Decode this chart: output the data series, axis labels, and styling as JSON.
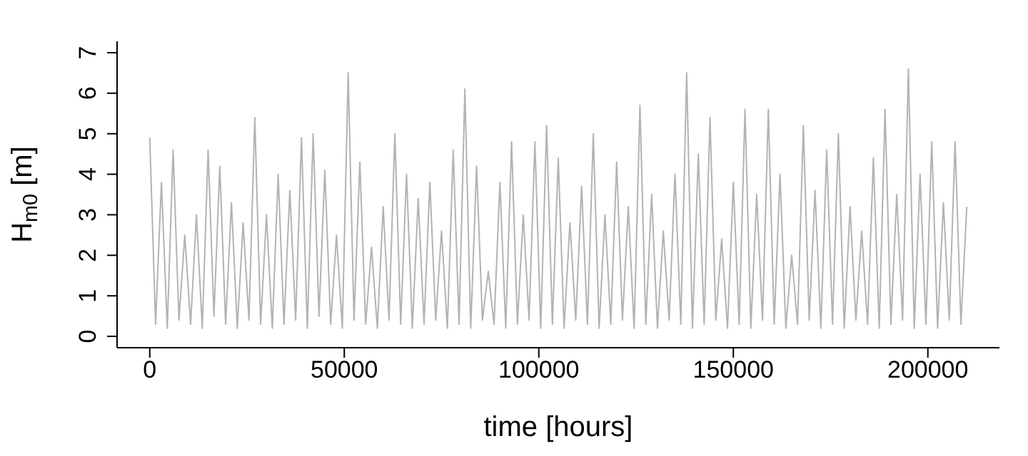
{
  "chart_data": {
    "type": "line",
    "xlabel": "time [hours]",
    "ylabel": "H$_{m0}$ [m]",
    "x": [
      0,
      1500,
      3000,
      4500,
      6000,
      7500,
      9000,
      10500,
      12000,
      13500,
      15000,
      16500,
      18000,
      19500,
      21000,
      22500,
      24000,
      25500,
      27000,
      28500,
      30000,
      31500,
      33000,
      34500,
      36000,
      37500,
      39000,
      40500,
      42000,
      43500,
      45000,
      46500,
      48000,
      49500,
      51000,
      52500,
      54000,
      55500,
      57000,
      58500,
      60000,
      61500,
      63000,
      64500,
      66000,
      67500,
      69000,
      70500,
      72000,
      73500,
      75000,
      76500,
      78000,
      79500,
      81000,
      82500,
      84000,
      85500,
      87000,
      88500,
      90000,
      91500,
      93000,
      94500,
      96000,
      97500,
      99000,
      100500,
      102000,
      103500,
      105000,
      106500,
      108000,
      109500,
      111000,
      112500,
      114000,
      115500,
      117000,
      118500,
      120000,
      121500,
      123000,
      124500,
      126000,
      127500,
      129000,
      130500,
      132000,
      133500,
      135000,
      136500,
      138000,
      139500,
      141000,
      142500,
      144000,
      145500,
      147000,
      148500,
      150000,
      151500,
      153000,
      154500,
      156000,
      157500,
      159000,
      160500,
      162000,
      163500,
      165000,
      166500,
      168000,
      169500,
      171000,
      172500,
      174000,
      175500,
      177000,
      178500,
      180000,
      181500,
      183000,
      184500,
      186000,
      187500,
      189000,
      190500,
      192000,
      193500,
      195000,
      196500,
      198000,
      199500,
      201000,
      202500,
      204000,
      205500,
      207000,
      208500,
      210000
    ],
    "series": [
      {
        "color": "#b3b3b3",
        "values": [
          4.9,
          0.3,
          3.8,
          0.2,
          4.6,
          0.4,
          2.5,
          0.3,
          3.0,
          0.2,
          4.6,
          0.5,
          4.2,
          0.3,
          3.3,
          0.2,
          2.8,
          0.4,
          5.4,
          0.3,
          3.0,
          0.2,
          4.0,
          0.3,
          3.6,
          0.4,
          4.9,
          0.2,
          5.0,
          0.5,
          4.1,
          0.3,
          2.5,
          0.2,
          6.5,
          0.4,
          4.3,
          0.3,
          2.2,
          0.2,
          3.2,
          0.4,
          5.0,
          0.3,
          4.0,
          0.2,
          3.4,
          0.3,
          3.8,
          0.4,
          2.6,
          0.2,
          4.6,
          0.3,
          6.1,
          0.2,
          4.2,
          0.4,
          1.6,
          0.3,
          3.8,
          0.2,
          4.8,
          0.3,
          3.0,
          0.4,
          4.8,
          0.2,
          5.2,
          0.3,
          4.4,
          0.2,
          2.8,
          0.4,
          3.7,
          0.3,
          5.0,
          0.2,
          3.0,
          0.3,
          4.3,
          0.4,
          3.2,
          0.2,
          5.7,
          0.3,
          3.5,
          0.2,
          2.6,
          0.4,
          4.0,
          0.3,
          6.5,
          0.2,
          4.5,
          0.3,
          5.4,
          0.4,
          2.4,
          0.2,
          3.8,
          0.3,
          5.6,
          0.2,
          3.5,
          0.4,
          5.6,
          0.3,
          4.0,
          0.2,
          2.0,
          0.3,
          5.2,
          0.4,
          3.6,
          0.2,
          4.6,
          0.3,
          5.0,
          0.2,
          3.2,
          0.4,
          2.6,
          0.3,
          4.4,
          0.2,
          5.6,
          0.3,
          3.5,
          0.4,
          6.6,
          0.2,
          4.0,
          0.3,
          4.8,
          0.2,
          3.3,
          0.4,
          4.8,
          0.3,
          3.2
        ]
      }
    ],
    "xlim": [
      -8400,
      218400
    ],
    "ylim": [
      -0.28,
      7.28
    ],
    "xticks": [
      0,
      50000,
      100000,
      150000,
      200000
    ],
    "yticks": [
      0,
      1,
      2,
      3,
      4,
      5,
      6,
      7
    ],
    "marker": "none",
    "line_style": "solid",
    "grid": false,
    "legend": false
  }
}
